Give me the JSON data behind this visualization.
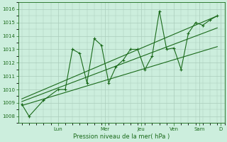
{
  "ylabel": "Pression niveau de la mer( hPa )",
  "ylim": [
    1007.5,
    1016.5
  ],
  "yticks": [
    1008,
    1009,
    1010,
    1011,
    1012,
    1013,
    1014,
    1015,
    1016
  ],
  "bg_color": "#cceedd",
  "grid_color": "#aaccbb",
  "line_color": "#1a6a1a",
  "days": [
    "Lun",
    "Mer",
    "Jeu",
    "Ven",
    "Sam",
    "D"
  ],
  "zigzag_x": [
    0,
    1,
    3,
    5,
    6,
    7,
    8,
    9,
    10,
    11,
    12,
    13,
    14,
    15,
    16,
    17,
    18,
    19,
    20,
    21,
    22,
    23,
    24,
    25,
    26,
    27
  ],
  "zigzag_y": [
    1008.9,
    1008.0,
    1009.2,
    1010.0,
    1010.0,
    1013.0,
    1012.7,
    1010.5,
    1013.8,
    1013.3,
    1010.5,
    1011.7,
    1012.2,
    1013.0,
    1013.0,
    1011.5,
    1012.5,
    1015.85,
    1013.0,
    1013.1,
    1011.5,
    1014.2,
    1015.0,
    1014.8,
    1015.2,
    1015.5
  ],
  "trend1_x": [
    0,
    27
  ],
  "trend1_y": [
    1009.3,
    1015.5
  ],
  "trend2_x": [
    0,
    27
  ],
  "trend2_y": [
    1009.1,
    1014.6
  ],
  "trend3_x": [
    0,
    27
  ],
  "trend3_y": [
    1008.8,
    1013.2
  ],
  "day_positions": [
    5,
    11.5,
    16.5,
    21,
    24.5,
    27.5
  ],
  "xlim": [
    -0.5,
    28
  ]
}
